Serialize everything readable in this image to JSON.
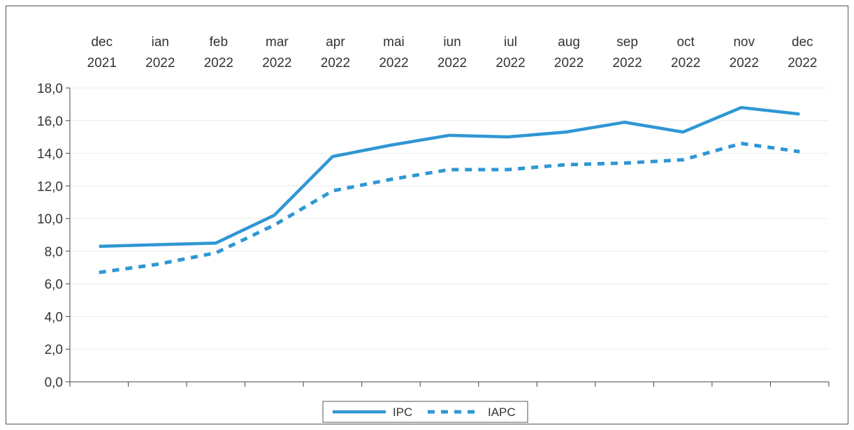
{
  "chart_data": {
    "type": "line",
    "categories": [
      [
        "dec",
        "2021"
      ],
      [
        "ian",
        "2022"
      ],
      [
        "feb",
        "2022"
      ],
      [
        "mar",
        "2022"
      ],
      [
        "apr",
        "2022"
      ],
      [
        "mai",
        "2022"
      ],
      [
        "iun",
        "2022"
      ],
      [
        "iul",
        "2022"
      ],
      [
        "aug",
        "2022"
      ],
      [
        "sep",
        "2022"
      ],
      [
        "oct",
        "2022"
      ],
      [
        "nov",
        "2022"
      ],
      [
        "dec",
        "2022"
      ]
    ],
    "series": [
      {
        "name": "IPC",
        "style": "solid",
        "color": "#2f97d3",
        "values": [
          8.3,
          8.4,
          8.5,
          10.2,
          13.8,
          14.5,
          15.1,
          15.0,
          15.3,
          15.9,
          15.3,
          16.8,
          16.4
        ]
      },
      {
        "name": "IAPC",
        "style": "dotted",
        "color": "#2f97d3",
        "values": [
          6.7,
          7.2,
          7.9,
          9.6,
          11.7,
          12.4,
          13.0,
          13.0,
          13.3,
          13.4,
          13.6,
          14.6,
          14.1
        ]
      }
    ],
    "y_ticks": [
      "0,0",
      "2,0",
      "4,0",
      "6,0",
      "8,0",
      "10,0",
      "12,0",
      "14,0",
      "16,0",
      "18,0"
    ],
    "ylim": [
      0,
      18
    ],
    "grid": true,
    "legend_position": "bottom-center"
  }
}
